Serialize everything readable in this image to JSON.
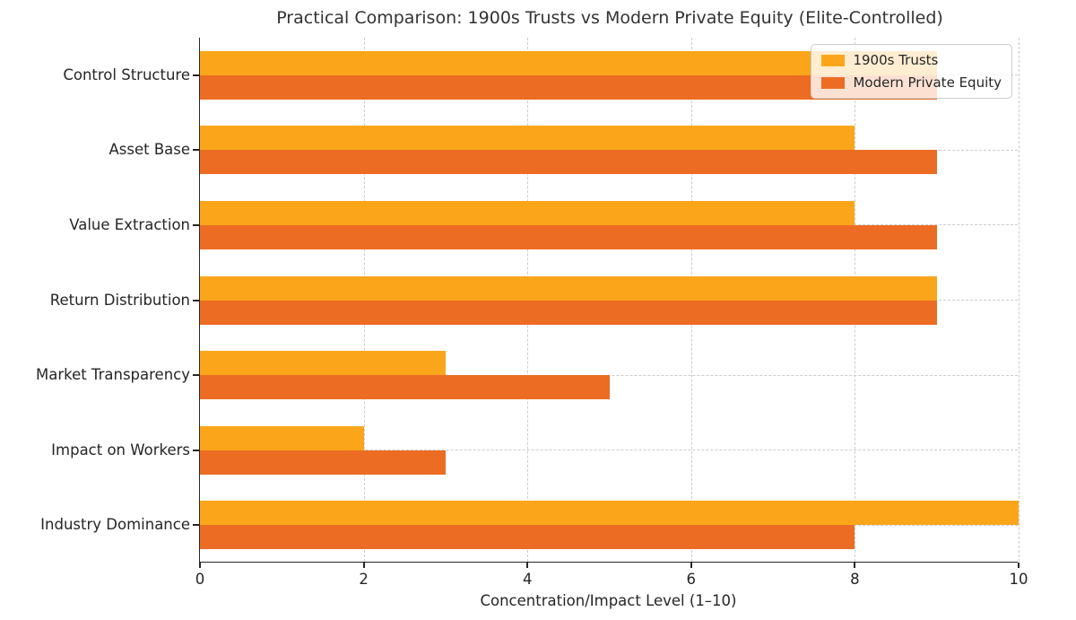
{
  "chart_data": {
    "type": "bar",
    "orientation": "horizontal",
    "title": "Practical Comparison: 1900s Trusts vs Modern Private Equity (Elite-Controlled)",
    "xlabel": "Concentration/Impact Level (1–10)",
    "categories": [
      "Control Structure",
      "Asset Base",
      "Value Extraction",
      "Return Distribution",
      "Market Transparency",
      "Impact on Workers",
      "Industry Dominance"
    ],
    "series": [
      {
        "name": "1900s Trusts",
        "color": "#FBA61A",
        "values": [
          9,
          8,
          8,
          9,
          3,
          2,
          10
        ]
      },
      {
        "name": "Modern Private Equity",
        "color": "#ED6C24",
        "values": [
          9,
          9,
          9,
          9,
          5,
          3,
          8
        ]
      }
    ],
    "xlim": [
      0,
      10
    ],
    "xticks": [
      0,
      2,
      4,
      6,
      8,
      10
    ],
    "grid": true,
    "grid_style": "dashed",
    "grid_color": "#cccccc",
    "legend_position": "upper right",
    "text_color": "#262626",
    "title_color": "#333333"
  }
}
